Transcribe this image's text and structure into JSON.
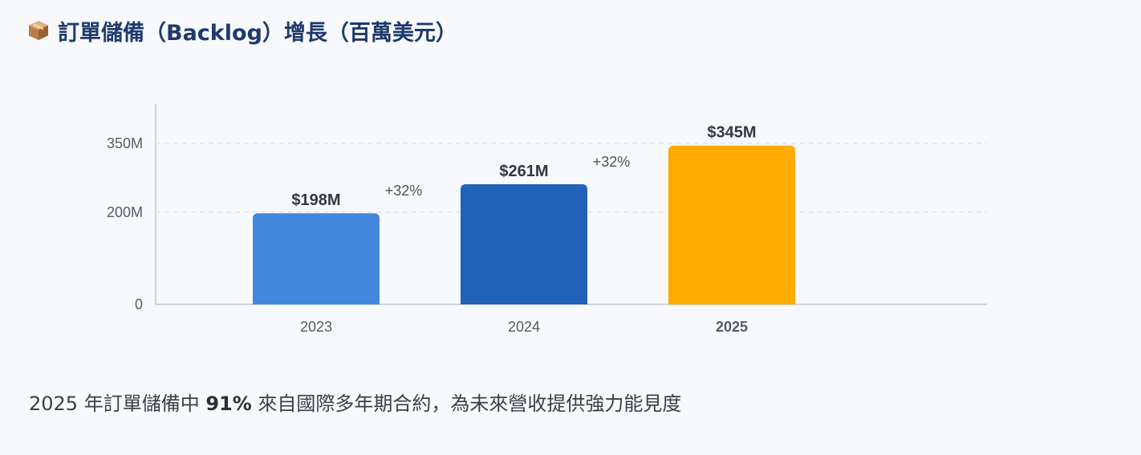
{
  "header": {
    "icon": "package-box-icon",
    "title": "訂單儲備（Backlog）增長（百萬美元）"
  },
  "chart_data": {
    "type": "bar",
    "categories": [
      "2023",
      "2024",
      "2025"
    ],
    "values": [
      198,
      261,
      345
    ],
    "value_labels": [
      "$198M",
      "$261M",
      "$345M"
    ],
    "growth_labels": [
      "+32%",
      "+32%"
    ],
    "yticks": [
      0,
      200,
      350
    ],
    "ytick_labels": [
      "0",
      "200M",
      "350M"
    ],
    "ylim": [
      0,
      435
    ],
    "highlight_category": "2025",
    "grid": true,
    "colors": [
      "#4289dd",
      "#2163b9",
      "#ffab00"
    ]
  },
  "footnote": {
    "prefix": "2025 年訂單儲備中 ",
    "highlight": "91%",
    "suffix": " 來自國際多年期合約，為未來營收提供強力能見度"
  }
}
